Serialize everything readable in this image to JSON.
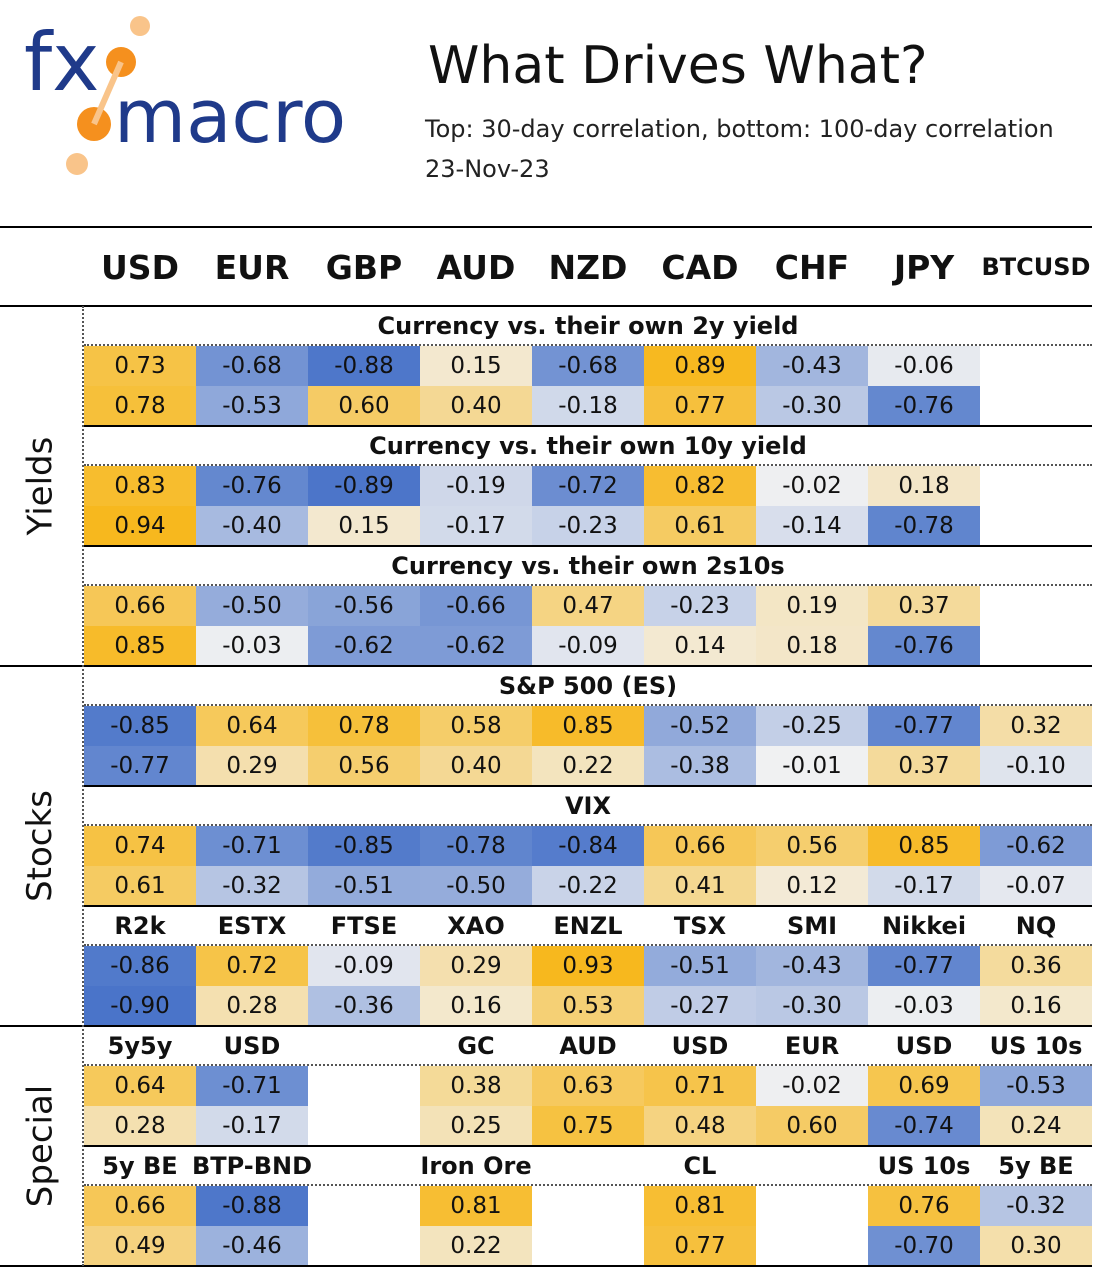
{
  "header": {
    "logo_text_top": "fx",
    "logo_text_bottom": "macro",
    "title": "What Drives What?",
    "subtitle": "Top: 30-day correlation, bottom: 100-day correlation",
    "date": "23-Nov-23"
  },
  "colors": {
    "positive": "#f7b81e",
    "negative": "#4a74c9",
    "neutral": "#f2f2f2",
    "logo_blue": "#1f3a8a",
    "logo_orange": "#f5901e"
  },
  "chart_data": {
    "type": "table",
    "columns": [
      "USD",
      "EUR",
      "GBP",
      "AUD",
      "NZD",
      "CAD",
      "CHF",
      "JPY",
      "BTCUSD"
    ],
    "groups": [
      {
        "label": "Yields",
        "sections": [
          {
            "headers": [
              "Currency vs. their own 2y yield"
            ],
            "rows": [
              [
                0.73,
                -0.68,
                -0.88,
                0.15,
                -0.68,
                0.89,
                -0.43,
                -0.06,
                null
              ],
              [
                0.78,
                -0.53,
                0.6,
                0.4,
                -0.18,
                0.77,
                -0.3,
                -0.76,
                null
              ]
            ]
          },
          {
            "headers": [
              "Currency vs. their own 10y yield"
            ],
            "rows": [
              [
                0.83,
                -0.76,
                -0.89,
                -0.19,
                -0.72,
                0.82,
                -0.02,
                0.18,
                null
              ],
              [
                0.94,
                -0.4,
                0.15,
                -0.17,
                -0.23,
                0.61,
                -0.14,
                -0.78,
                null
              ]
            ]
          },
          {
            "headers": [
              "Currency vs. their own 2s10s"
            ],
            "rows": [
              [
                0.66,
                -0.5,
                -0.56,
                -0.66,
                0.47,
                -0.23,
                0.19,
                0.37,
                null
              ],
              [
                0.85,
                -0.03,
                -0.62,
                -0.62,
                -0.09,
                0.14,
                0.18,
                -0.76,
                null
              ]
            ]
          }
        ]
      },
      {
        "label": "Stocks",
        "sections": [
          {
            "headers": [
              "S&P 500 (ES)"
            ],
            "rows": [
              [
                -0.85,
                0.64,
                0.78,
                0.58,
                0.85,
                -0.52,
                -0.25,
                -0.77,
                0.32
              ],
              [
                -0.77,
                0.29,
                0.56,
                0.4,
                0.22,
                -0.38,
                -0.01,
                0.37,
                -0.1
              ]
            ]
          },
          {
            "headers": [
              "VIX"
            ],
            "rows": [
              [
                0.74,
                -0.71,
                -0.85,
                -0.78,
                -0.84,
                0.66,
                0.56,
                0.85,
                -0.62
              ],
              [
                0.61,
                -0.32,
                -0.51,
                -0.5,
                -0.22,
                0.41,
                0.12,
                -0.17,
                -0.07
              ]
            ]
          },
          {
            "headers": [
              "R2k",
              "ESTX",
              "FTSE",
              "XAO",
              "ENZL",
              "TSX",
              "SMI",
              "Nikkei",
              "NQ"
            ],
            "rows": [
              [
                -0.86,
                0.72,
                -0.09,
                0.29,
                0.93,
                -0.51,
                -0.43,
                -0.77,
                0.36
              ],
              [
                -0.9,
                0.28,
                -0.36,
                0.16,
                0.53,
                -0.27,
                -0.3,
                -0.03,
                0.16
              ]
            ]
          }
        ]
      },
      {
        "label": "Special",
        "sections": [
          {
            "headers": [
              "5y5y",
              "USD",
              "",
              "GC",
              "AUD",
              "USD",
              "EUR",
              "USD",
              "US 10s"
            ],
            "rows": [
              [
                0.64,
                -0.71,
                null,
                0.38,
                0.63,
                0.71,
                -0.02,
                0.69,
                -0.53
              ],
              [
                0.28,
                -0.17,
                null,
                0.25,
                0.75,
                0.48,
                0.6,
                -0.74,
                0.24
              ]
            ]
          },
          {
            "headers": [
              "5y BE",
              "BTP-BND",
              "",
              "Iron Ore",
              "",
              "CL",
              "",
              "US 10s",
              "5y BE"
            ],
            "rows": [
              [
                0.66,
                -0.88,
                null,
                0.81,
                null,
                0.81,
                null,
                0.76,
                -0.32
              ],
              [
                0.49,
                -0.46,
                null,
                0.22,
                null,
                0.77,
                null,
                -0.7,
                0.3
              ]
            ]
          }
        ]
      }
    ]
  }
}
